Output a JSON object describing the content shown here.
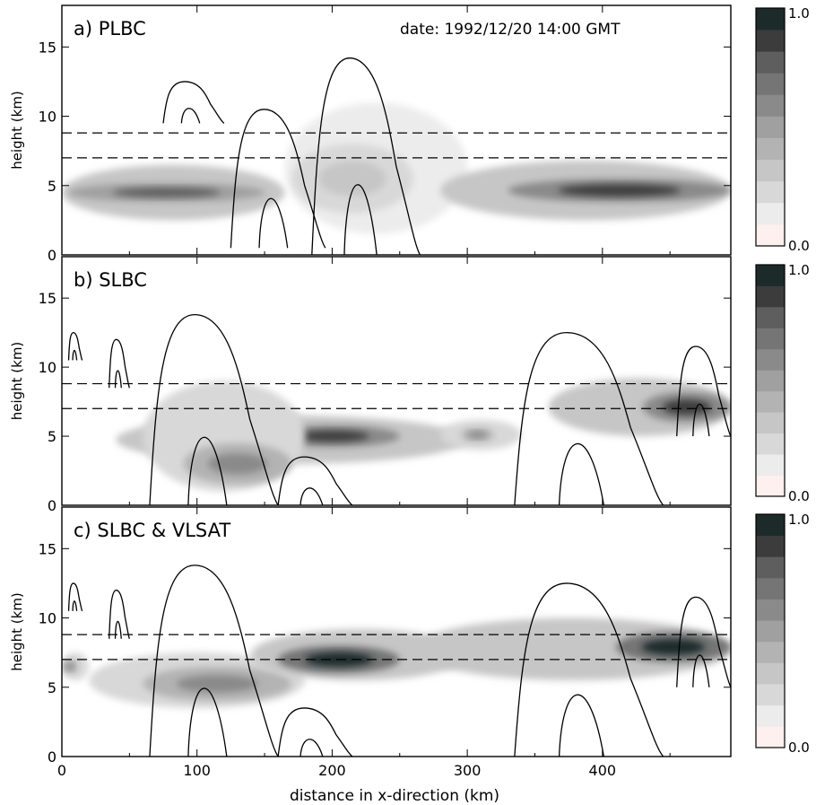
{
  "figure": {
    "date_label": "date: 1992/12/20   14:00 GMT",
    "xlabel": "distance in x-direction (km)",
    "ylabel": "height (km)",
    "colorbar_max_label": "1.0",
    "colorbar_min_label": "0.0"
  },
  "chart_data": [
    {
      "type": "contour",
      "panel_label": "a) PLBC",
      "xlim": [
        0,
        495
      ],
      "ylim": [
        0,
        18
      ],
      "x_ticks": [
        0,
        100,
        200,
        300,
        400
      ],
      "y_ticks": [
        0,
        5,
        10,
        15
      ],
      "y_tick_labels": [
        "0",
        "5",
        "10",
        "15"
      ],
      "dashed_levels_km": [
        7.0,
        8.8
      ],
      "colorbar": {
        "range": [
          0.0,
          1.0
        ],
        "levels": 10
      },
      "shaded_features": [
        {
          "x": [
            0,
            165
          ],
          "y": [
            2.5,
            6.5
          ],
          "peak_value": 0.75,
          "core_x": [
            5,
            150
          ],
          "core_y": [
            3.8,
            5.2
          ]
        },
        {
          "x": [
            165,
            300
          ],
          "y": [
            1.5,
            11.0
          ],
          "peak_value": 0.25,
          "core_x": [
            170,
            260
          ],
          "core_y": [
            3.0,
            8.0
          ]
        },
        {
          "x": [
            280,
            495
          ],
          "y": [
            2.5,
            6.8
          ],
          "peak_value": 0.85,
          "core_x": [
            330,
            495
          ],
          "core_y": [
            3.8,
            5.5
          ]
        }
      ],
      "cloud_contours": [
        {
          "x": [
            75,
            120
          ],
          "y": [
            9.5,
            12.5
          ]
        },
        {
          "x": [
            125,
            195
          ],
          "y": [
            0.5,
            10.5
          ]
        },
        {
          "x": [
            185,
            265
          ],
          "y": [
            0.0,
            14.2
          ]
        }
      ]
    },
    {
      "type": "contour",
      "panel_label": "b) SLBC",
      "xlim": [
        0,
        495
      ],
      "ylim": [
        0,
        18
      ],
      "x_ticks": [
        0,
        100,
        200,
        300,
        400
      ],
      "y_ticks": [
        0,
        5,
        10,
        15
      ],
      "y_tick_labels": [
        "0",
        "5",
        "10",
        "15"
      ],
      "dashed_levels_km": [
        7.0,
        8.8
      ],
      "colorbar": {
        "range": [
          0.0,
          1.0
        ],
        "levels": 10
      },
      "shaded_features": [
        {
          "x": [
            40,
            300
          ],
          "y": [
            3.0,
            6.5
          ],
          "peak_value": 0.85,
          "core_x": [
            150,
            250
          ],
          "core_y": [
            4.2,
            5.8
          ]
        },
        {
          "x": [
            60,
            180
          ],
          "y": [
            1.0,
            9.0
          ],
          "peak_value": 0.55,
          "core_x": [
            90,
            170
          ],
          "core_y": [
            1.5,
            4.5
          ]
        },
        {
          "x": [
            280,
            340
          ],
          "y": [
            4.0,
            6.2
          ],
          "peak_value": 0.6,
          "core_x": [
            295,
            320
          ],
          "core_y": [
            4.6,
            5.6
          ]
        },
        {
          "x": [
            360,
            495
          ],
          "y": [
            5.0,
            9.2
          ],
          "peak_value": 0.9,
          "core_x": [
            430,
            495
          ],
          "core_y": [
            6.0,
            8.2
          ]
        }
      ],
      "cloud_contours": [
        {
          "x": [
            5,
            15
          ],
          "y": [
            10.5,
            12.5
          ]
        },
        {
          "x": [
            35,
            50
          ],
          "y": [
            8.5,
            12.0
          ]
        },
        {
          "x": [
            65,
            160
          ],
          "y": [
            0.0,
            13.8
          ]
        },
        {
          "x": [
            160,
            215
          ],
          "y": [
            0.0,
            3.5
          ]
        },
        {
          "x": [
            335,
            445
          ],
          "y": [
            0.0,
            12.5
          ]
        },
        {
          "x": [
            455,
            495
          ],
          "y": [
            5.0,
            11.5
          ]
        }
      ]
    },
    {
      "type": "contour",
      "panel_label": "c) SLBC & VLSAT",
      "xlim": [
        0,
        495
      ],
      "ylim": [
        0,
        18
      ],
      "x_ticks": [
        0,
        100,
        200,
        300,
        400
      ],
      "y_ticks": [
        0,
        5,
        10,
        15
      ],
      "y_tick_labels": [
        "0",
        "5",
        "10",
        "15"
      ],
      "x_tick_labels": [
        "0",
        "100",
        "200",
        "300",
        "400"
      ],
      "dashed_levels_km": [
        7.0,
        8.8
      ],
      "colorbar": {
        "range": [
          0.0,
          1.0
        ],
        "levels": 10
      },
      "shaded_features": [
        {
          "x": [
            0,
            20
          ],
          "y": [
            5.5,
            7.5
          ],
          "peak_value": 0.55,
          "core_x": [
            0,
            12
          ],
          "core_y": [
            6.0,
            7.0
          ]
        },
        {
          "x": [
            20,
            180
          ],
          "y": [
            3.5,
            7.5
          ],
          "peak_value": 0.6,
          "core_x": [
            60,
            170
          ],
          "core_y": [
            4.0,
            6.5
          ]
        },
        {
          "x": [
            140,
            300
          ],
          "y": [
            5.5,
            9.2
          ],
          "peak_value": 0.95,
          "core_x": [
            160,
            250
          ],
          "core_y": [
            6.0,
            8.0
          ]
        },
        {
          "x": [
            260,
            495
          ],
          "y": [
            5.5,
            10.0
          ],
          "peak_value": 0.95,
          "core_x": [
            410,
            495
          ],
          "core_y": [
            6.8,
            9.0
          ]
        }
      ],
      "cloud_contours": [
        {
          "x": [
            5,
            15
          ],
          "y": [
            10.5,
            12.5
          ]
        },
        {
          "x": [
            35,
            50
          ],
          "y": [
            8.5,
            12.0
          ]
        },
        {
          "x": [
            65,
            160
          ],
          "y": [
            0.0,
            13.8
          ]
        },
        {
          "x": [
            160,
            215
          ],
          "y": [
            0.0,
            3.5
          ]
        },
        {
          "x": [
            335,
            445
          ],
          "y": [
            0.0,
            12.5
          ]
        },
        {
          "x": [
            455,
            495
          ],
          "y": [
            5.0,
            11.5
          ]
        }
      ]
    }
  ]
}
